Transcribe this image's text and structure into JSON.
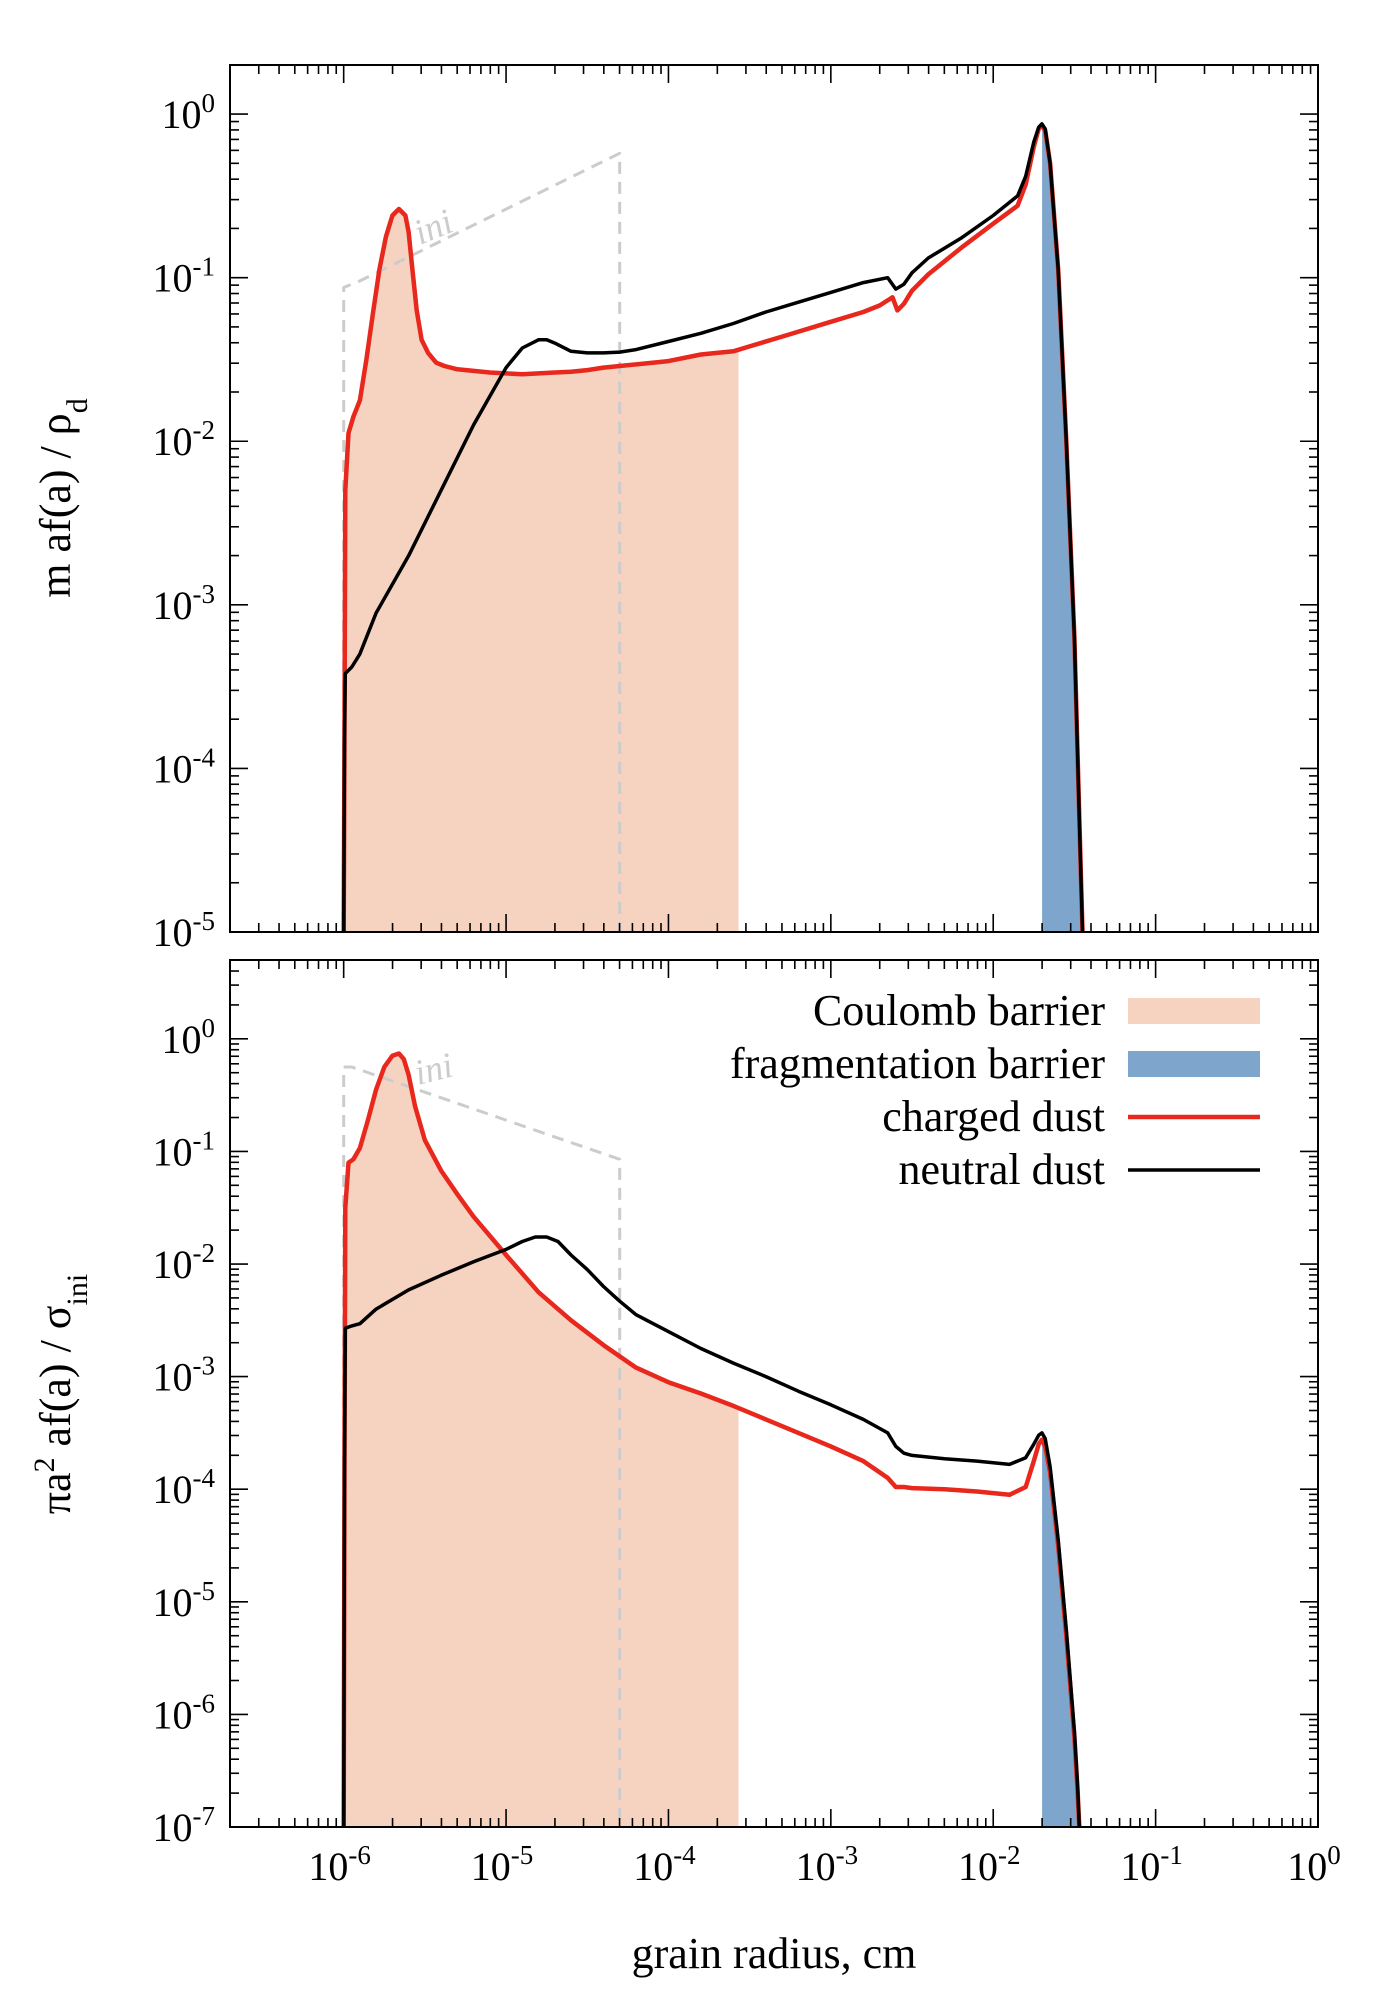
{
  "chart_data": [
    {
      "type": "line",
      "panel": "top",
      "ylabel_main": "m af(a) / ρ",
      "ylabel_sub": "d",
      "xscale": "log",
      "yscale": "log",
      "xlim": [
        -6.7,
        0
      ],
      "ylim": [
        -5,
        0.3
      ],
      "ytick_labels": [
        "10-5",
        "10-4",
        "10-3",
        "10-2",
        "10-1",
        "100"
      ],
      "coulomb_barrier_range": [
        1e-06,
        0.00027
      ],
      "fragmentation_barrier_range": [
        0.02,
        0.035
      ],
      "initial_label": "ini",
      "series": [
        {
          "name": "initial",
          "style": "dashed",
          "color": "#cccccc",
          "logx": [
            -6,
            -6,
            -5.9,
            -4.3,
            -4.3
          ],
          "logy": [
            -5,
            -1.06,
            -1.02,
            -0.24,
            -5
          ]
        },
        {
          "name": "charged dust",
          "color": "#e8281c",
          "logx": [
            -6,
            -5.995,
            -5.99,
            -5.97,
            -5.94,
            -5.9,
            -5.86,
            -5.82,
            -5.78,
            -5.74,
            -5.7,
            -5.66,
            -5.62,
            -5.6,
            -5.58,
            -5.55,
            -5.52,
            -5.48,
            -5.43,
            -5.38,
            -5.3,
            -5.2,
            -5.1,
            -5.0,
            -4.9,
            -4.8,
            -4.7,
            -4.6,
            -4.5,
            -4.4,
            -4.3,
            -4.0,
            -3.8,
            -3.6,
            -3.5,
            -3.3,
            -3.0,
            -2.8,
            -2.7,
            -2.62,
            -2.59,
            -2.55,
            -2.5,
            -2.4,
            -2.2,
            -2.0,
            -1.85,
            -1.8,
            -1.75,
            -1.72,
            -1.7,
            -1.68,
            -1.65,
            -1.6,
            -1.55,
            -1.5,
            -1.47,
            -1.45
          ],
          "logy": [
            -5,
            -3.8,
            -2.3,
            -1.95,
            -1.85,
            -1.75,
            -1.5,
            -1.22,
            -0.95,
            -0.75,
            -0.62,
            -0.58,
            -0.62,
            -0.72,
            -0.92,
            -1.2,
            -1.38,
            -1.46,
            -1.52,
            -1.54,
            -1.56,
            -1.57,
            -1.58,
            -1.585,
            -1.59,
            -1.585,
            -1.58,
            -1.575,
            -1.565,
            -1.55,
            -1.54,
            -1.51,
            -1.47,
            -1.45,
            -1.42,
            -1.36,
            -1.27,
            -1.21,
            -1.17,
            -1.12,
            -1.2,
            -1.16,
            -1.08,
            -0.98,
            -0.82,
            -0.67,
            -0.56,
            -0.43,
            -0.2,
            -0.09,
            -0.07,
            -0.1,
            -0.3,
            -0.95,
            -2.0,
            -3.2,
            -4.3,
            -5
          ]
        },
        {
          "name": "neutral dust",
          "color": "#000000",
          "logx": [
            -6,
            -5.995,
            -5.99,
            -5.95,
            -5.9,
            -5.8,
            -5.6,
            -5.4,
            -5.2,
            -5.0,
            -4.9,
            -4.8,
            -4.75,
            -4.7,
            -4.6,
            -4.5,
            -4.4,
            -4.3,
            -4.2,
            -4.0,
            -3.8,
            -3.6,
            -3.4,
            -3.2,
            -3.0,
            -2.8,
            -2.65,
            -2.6,
            -2.55,
            -2.5,
            -2.4,
            -2.2,
            -2.0,
            -1.85,
            -1.8,
            -1.75,
            -1.72,
            -1.7,
            -1.68,
            -1.65,
            -1.6,
            -1.55,
            -1.5,
            -1.47,
            -1.45
          ],
          "logy": [
            -5,
            -3.8,
            -3.42,
            -3.38,
            -3.3,
            -3.05,
            -2.7,
            -2.3,
            -1.9,
            -1.55,
            -1.43,
            -1.38,
            -1.38,
            -1.4,
            -1.45,
            -1.46,
            -1.46,
            -1.455,
            -1.44,
            -1.39,
            -1.34,
            -1.28,
            -1.21,
            -1.15,
            -1.09,
            -1.03,
            -1.0,
            -1.07,
            -1.04,
            -0.97,
            -0.88,
            -0.76,
            -0.62,
            -0.5,
            -0.38,
            -0.17,
            -0.08,
            -0.06,
            -0.09,
            -0.3,
            -0.95,
            -2.0,
            -3.2,
            -4.3,
            -5
          ]
        }
      ]
    },
    {
      "type": "line",
      "panel": "bottom",
      "ylabel_main": "πa",
      "ylabel_sup": "2",
      "ylabel_rest": " af(a) / σ",
      "ylabel_sub": "ini",
      "xlabel": "grain radius, cm",
      "xscale": "log",
      "yscale": "log",
      "xlim": [
        -6.7,
        0
      ],
      "ylim": [
        -7,
        0.7
      ],
      "xtick_labels": [
        "10-6",
        "10-5",
        "10-4",
        "10-3",
        "10-2",
        "10-1",
        "100"
      ],
      "ytick_labels": [
        "10-7",
        "10-6",
        "10-5",
        "10-4",
        "10-3",
        "10-2",
        "10-1",
        "100"
      ],
      "coulomb_barrier_range": [
        1e-06,
        0.00027
      ],
      "fragmentation_barrier_range": [
        0.02,
        0.033
      ],
      "initial_label": "ini",
      "series": [
        {
          "name": "initial",
          "style": "dashed",
          "color": "#cccccc",
          "logx": [
            -6,
            -6,
            -5.95,
            -4.3,
            -4.3
          ],
          "logy": [
            -7,
            -0.25,
            -0.25,
            -1.07,
            -7
          ]
        },
        {
          "name": "charged dust",
          "color": "#e8281c",
          "logx": [
            -6,
            -5.995,
            -5.99,
            -5.97,
            -5.94,
            -5.9,
            -5.85,
            -5.8,
            -5.75,
            -5.7,
            -5.66,
            -5.63,
            -5.6,
            -5.56,
            -5.5,
            -5.4,
            -5.3,
            -5.2,
            -5.0,
            -4.8,
            -4.6,
            -4.4,
            -4.2,
            -4.0,
            -3.8,
            -3.6,
            -3.4,
            -3.2,
            -3.0,
            -2.8,
            -2.65,
            -2.6,
            -2.55,
            -2.5,
            -2.3,
            -2.1,
            -1.9,
            -1.8,
            -1.75,
            -1.72,
            -1.7,
            -1.68,
            -1.65,
            -1.6,
            -1.55,
            -1.5,
            -1.48,
            -1.47
          ],
          "logy": [
            -7,
            -3.8,
            -1.5,
            -1.1,
            -1.07,
            -0.97,
            -0.72,
            -0.45,
            -0.25,
            -0.15,
            -0.13,
            -0.18,
            -0.32,
            -0.6,
            -0.9,
            -1.17,
            -1.38,
            -1.58,
            -1.92,
            -2.25,
            -2.5,
            -2.72,
            -2.92,
            -3.05,
            -3.15,
            -3.26,
            -3.38,
            -3.5,
            -3.62,
            -3.75,
            -3.9,
            -3.98,
            -3.98,
            -3.99,
            -4.0,
            -4.02,
            -4.05,
            -3.98,
            -3.75,
            -3.6,
            -3.56,
            -3.62,
            -3.85,
            -4.5,
            -5.3,
            -6.2,
            -6.7,
            -7
          ]
        },
        {
          "name": "neutral dust",
          "color": "#000000",
          "logx": [
            -6,
            -5.995,
            -5.99,
            -5.95,
            -5.9,
            -5.8,
            -5.6,
            -5.4,
            -5.2,
            -5.0,
            -4.9,
            -4.82,
            -4.75,
            -4.68,
            -4.6,
            -4.5,
            -4.4,
            -4.3,
            -4.2,
            -4.0,
            -3.8,
            -3.6,
            -3.4,
            -3.2,
            -3.0,
            -2.8,
            -2.65,
            -2.6,
            -2.55,
            -2.5,
            -2.3,
            -2.1,
            -1.9,
            -1.8,
            -1.75,
            -1.72,
            -1.7,
            -1.68,
            -1.65,
            -1.6,
            -1.55,
            -1.5,
            -1.48,
            -1.47
          ],
          "logy": [
            -7,
            -3.8,
            -2.57,
            -2.55,
            -2.53,
            -2.4,
            -2.23,
            -2.1,
            -1.98,
            -1.87,
            -1.8,
            -1.76,
            -1.76,
            -1.8,
            -1.92,
            -2.05,
            -2.2,
            -2.33,
            -2.45,
            -2.6,
            -2.75,
            -2.88,
            -3.0,
            -3.13,
            -3.25,
            -3.38,
            -3.5,
            -3.62,
            -3.68,
            -3.7,
            -3.73,
            -3.75,
            -3.78,
            -3.72,
            -3.6,
            -3.52,
            -3.5,
            -3.55,
            -3.8,
            -4.45,
            -5.25,
            -6.15,
            -6.65,
            -7
          ]
        }
      ],
      "legend": [
        {
          "label": "Coulomb barrier",
          "kind": "fill",
          "color": "#f6d3c0"
        },
        {
          "label": "fragmentation barrier",
          "kind": "fill",
          "color": "#7ea6cc"
        },
        {
          "label": "charged dust",
          "kind": "line",
          "color": "#e8281c"
        },
        {
          "label": "neutral dust",
          "kind": "line",
          "color": "#000000"
        }
      ]
    }
  ]
}
